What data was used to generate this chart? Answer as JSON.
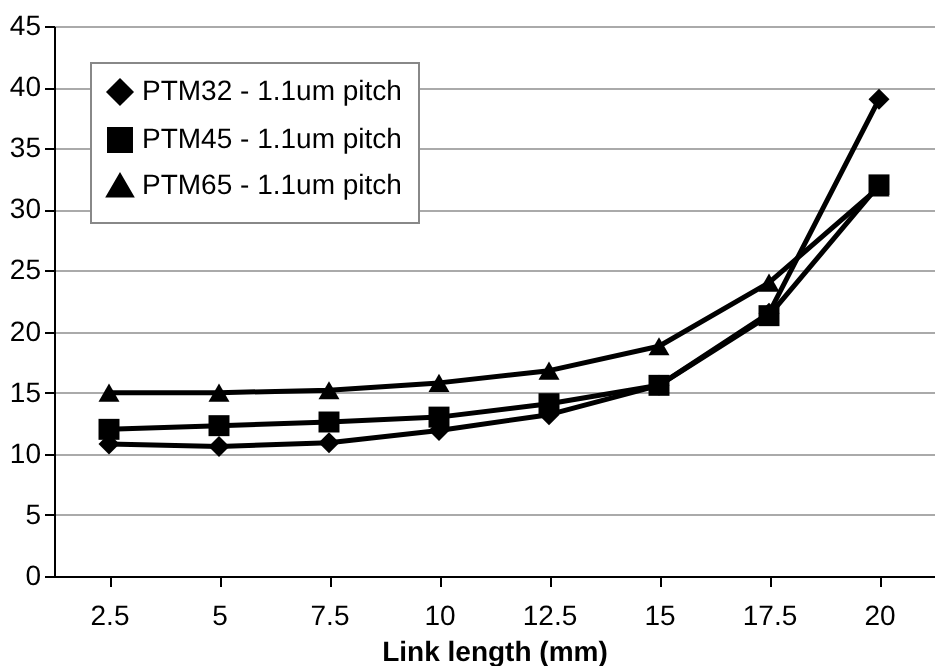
{
  "chart_data": {
    "type": "line",
    "xlabel": "Link length (mm)",
    "categories": [
      "2.5",
      "5",
      "7.5",
      "10",
      "12.5",
      "15",
      "17.5",
      "20"
    ],
    "series": [
      {
        "name": "PTM32 - 1.1um pitch",
        "color": "#000000",
        "marker": "diamond",
        "values": [
          10.8,
          10.6,
          10.9,
          11.9,
          13.2,
          15.6,
          21.5,
          39.0
        ]
      },
      {
        "name": "PTM45 - 1.1um pitch",
        "color": "#000000",
        "marker": "square",
        "values": [
          12.0,
          12.3,
          12.6,
          13.0,
          14.1,
          15.6,
          21.3,
          32.0
        ]
      },
      {
        "name": "PTM65 - 1.1um pitch",
        "color": "#000000",
        "marker": "triangle",
        "values": [
          15.0,
          15.0,
          15.2,
          15.8,
          16.8,
          18.8,
          24.0,
          31.8
        ]
      }
    ],
    "ylim": [
      0,
      45
    ],
    "yticks": [
      0,
      5,
      10,
      15,
      20,
      25,
      30,
      35,
      40,
      45
    ],
    "grid": "y",
    "legend": "top left",
    "line_style": "solid"
  }
}
